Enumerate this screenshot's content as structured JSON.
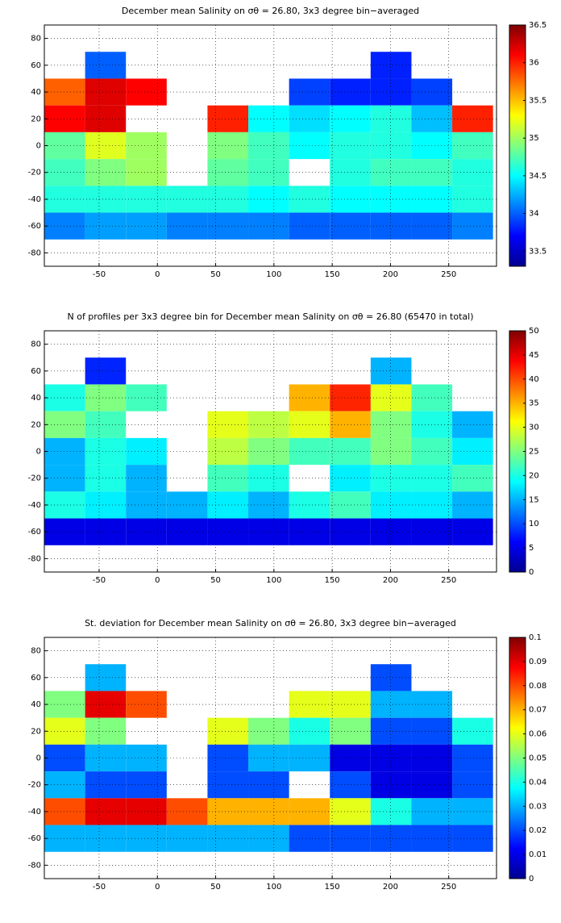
{
  "chart_data": [
    {
      "type": "heatmap",
      "title": "December mean Salinity on σθ = 26.80, 3x3 degree bin−averaged",
      "xbins": [
        -97,
        -62,
        -27,
        8,
        43,
        78,
        113,
        148,
        183,
        218,
        253,
        288
      ],
      "ybins": [
        90,
        70,
        50,
        30,
        10,
        -10,
        -30,
        -50,
        -70,
        -90
      ],
      "z": [
        [
          null,
          null,
          null,
          null,
          null,
          null,
          null,
          null,
          null,
          null,
          null
        ],
        [
          null,
          34.0,
          null,
          null,
          null,
          null,
          null,
          null,
          33.8,
          null,
          null
        ],
        [
          35.8,
          36.2,
          36.1,
          null,
          null,
          null,
          33.9,
          33.8,
          33.8,
          33.9,
          null
        ],
        [
          36.1,
          36.2,
          null,
          null,
          36.0,
          34.5,
          34.4,
          34.5,
          34.6,
          34.3,
          36.0
        ],
        [
          34.8,
          35.2,
          35.0,
          null,
          34.9,
          34.7,
          34.5,
          34.6,
          34.6,
          34.5,
          34.7
        ],
        [
          34.7,
          34.9,
          35.0,
          null,
          34.8,
          34.7,
          null,
          34.6,
          34.7,
          34.7,
          34.6
        ],
        [
          34.6,
          34.6,
          34.6,
          34.6,
          34.6,
          34.5,
          34.6,
          34.5,
          34.5,
          34.5,
          34.6
        ],
        [
          34.1,
          34.2,
          34.2,
          34.1,
          34.1,
          34.1,
          34.0,
          34.0,
          34.0,
          34.0,
          34.1
        ],
        [
          null,
          null,
          null,
          null,
          null,
          null,
          null,
          null,
          null,
          null,
          null
        ]
      ],
      "xlim": [
        -97,
        291
      ],
      "ylim": [
        -90,
        90
      ],
      "xticks": [
        -50,
        0,
        50,
        100,
        150,
        200,
        250
      ],
      "yticks": [
        -80,
        -60,
        -40,
        -20,
        0,
        20,
        40,
        60,
        80
      ],
      "clim": [
        33.3,
        36.5
      ],
      "cticks": [
        33.5,
        34,
        34.5,
        35,
        35.5,
        36,
        36.5
      ],
      "colormap": "jet",
      "grid": true
    },
    {
      "type": "heatmap",
      "title": "N of profiles per 3x3 degree bin for December mean Salinity on σθ = 26.80 (65470 in total)",
      "xbins": [
        -97,
        -62,
        -27,
        8,
        43,
        78,
        113,
        148,
        183,
        218,
        253,
        288
      ],
      "ybins": [
        90,
        70,
        50,
        30,
        10,
        -10,
        -30,
        -50,
        -70,
        -90
      ],
      "z": [
        [
          null,
          null,
          null,
          null,
          null,
          null,
          null,
          null,
          null,
          null,
          null
        ],
        [
          null,
          8,
          null,
          null,
          null,
          null,
          null,
          null,
          15,
          null,
          null
        ],
        [
          20,
          25,
          22,
          null,
          null,
          null,
          35,
          42,
          30,
          22,
          null
        ],
        [
          25,
          22,
          null,
          null,
          30,
          28,
          30,
          35,
          25,
          20,
          15
        ],
        [
          15,
          20,
          18,
          null,
          28,
          25,
          22,
          22,
          25,
          22,
          18
        ],
        [
          15,
          20,
          15,
          null,
          22,
          20,
          null,
          18,
          20,
          20,
          22
        ],
        [
          20,
          18,
          15,
          15,
          18,
          15,
          20,
          22,
          18,
          18,
          15
        ],
        [
          5,
          5,
          5,
          5,
          5,
          5,
          5,
          5,
          5,
          5,
          5
        ],
        [
          null,
          null,
          null,
          null,
          null,
          null,
          null,
          null,
          null,
          null,
          null
        ]
      ],
      "xlim": [
        -97,
        291
      ],
      "ylim": [
        -90,
        90
      ],
      "xticks": [
        -50,
        0,
        50,
        100,
        150,
        200,
        250
      ],
      "yticks": [
        -80,
        -60,
        -40,
        -20,
        0,
        20,
        40,
        60,
        80
      ],
      "clim": [
        0,
        50
      ],
      "cticks": [
        0,
        5,
        10,
        15,
        20,
        25,
        30,
        35,
        40,
        45,
        50
      ],
      "colormap": "jet",
      "grid": true
    },
    {
      "type": "heatmap",
      "title": "St. deviation for December mean Salinity on σθ = 26.80, 3x3 degree bin−averaged",
      "xbins": [
        -97,
        -62,
        -27,
        8,
        43,
        78,
        113,
        148,
        183,
        218,
        253,
        288
      ],
      "ybins": [
        90,
        70,
        50,
        30,
        10,
        -10,
        -30,
        -50,
        -70,
        -90
      ],
      "z": [
        [
          null,
          null,
          null,
          null,
          null,
          null,
          null,
          null,
          null,
          null,
          null
        ],
        [
          null,
          0.03,
          null,
          null,
          null,
          null,
          null,
          null,
          0.02,
          null,
          null
        ],
        [
          0.05,
          0.09,
          0.08,
          null,
          null,
          null,
          0.06,
          0.06,
          0.03,
          0.03,
          null
        ],
        [
          0.06,
          0.05,
          null,
          null,
          0.06,
          0.05,
          0.04,
          0.05,
          0.02,
          0.02,
          0.04
        ],
        [
          0.02,
          0.03,
          0.03,
          null,
          0.02,
          0.03,
          0.03,
          0.01,
          0.01,
          0.01,
          0.02
        ],
        [
          0.03,
          0.02,
          0.02,
          null,
          0.02,
          0.02,
          null,
          0.02,
          0.01,
          0.01,
          0.02
        ],
        [
          0.08,
          0.09,
          0.09,
          0.08,
          0.07,
          0.07,
          0.07,
          0.06,
          0.04,
          0.03,
          0.03
        ],
        [
          0.03,
          0.03,
          0.03,
          0.03,
          0.03,
          0.03,
          0.02,
          0.02,
          0.02,
          0.02,
          0.02
        ],
        [
          null,
          null,
          null,
          null,
          null,
          null,
          null,
          null,
          null,
          null,
          null
        ]
      ],
      "xlim": [
        -97,
        291
      ],
      "ylim": [
        -90,
        90
      ],
      "xticks": [
        -50,
        0,
        50,
        100,
        150,
        200,
        250
      ],
      "yticks": [
        -80,
        -60,
        -40,
        -20,
        0,
        20,
        40,
        60,
        80
      ],
      "clim": [
        0,
        0.1
      ],
      "cticks": [
        0,
        0.01,
        0.02,
        0.03,
        0.04,
        0.05,
        0.06,
        0.07,
        0.08,
        0.09,
        0.1
      ],
      "colormap": "jet",
      "grid": true
    }
  ]
}
